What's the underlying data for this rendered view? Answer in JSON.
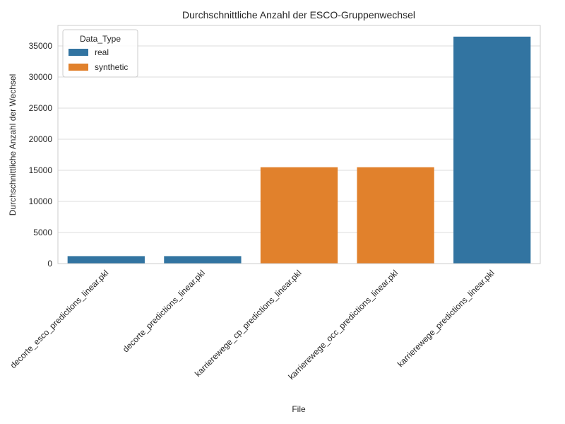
{
  "chart_data": {
    "type": "bar",
    "title": "Durchschnittliche Anzahl der ESCO-Gruppenwechsel",
    "xlabel": "File",
    "ylabel": "Durchschnittliche Anzahl der Wechsel",
    "categories": [
      "decorte_esco_predictions_linear.pkl",
      "decorte_predictions_linear.pkl",
      "karrierewege_cp_predictions_linear.pkl",
      "karrierewege_occ_predictions_linear.pkl",
      "karrierewege_predictions_linear.pkl"
    ],
    "values": [
      1200,
      1200,
      15500,
      15500,
      36500
    ],
    "hue": [
      "real",
      "real",
      "synthetic",
      "synthetic",
      "real"
    ],
    "ylim": [
      0,
      38300
    ],
    "yticks": [
      0,
      5000,
      10000,
      15000,
      20000,
      25000,
      30000,
      35000
    ],
    "grid": "horizontal",
    "legend": {
      "title": "Data_Type",
      "placement": "top-left",
      "entries": [
        {
          "label": "real",
          "color": "#3274a1"
        },
        {
          "label": "synthetic",
          "color": "#e1812c"
        }
      ]
    }
  }
}
